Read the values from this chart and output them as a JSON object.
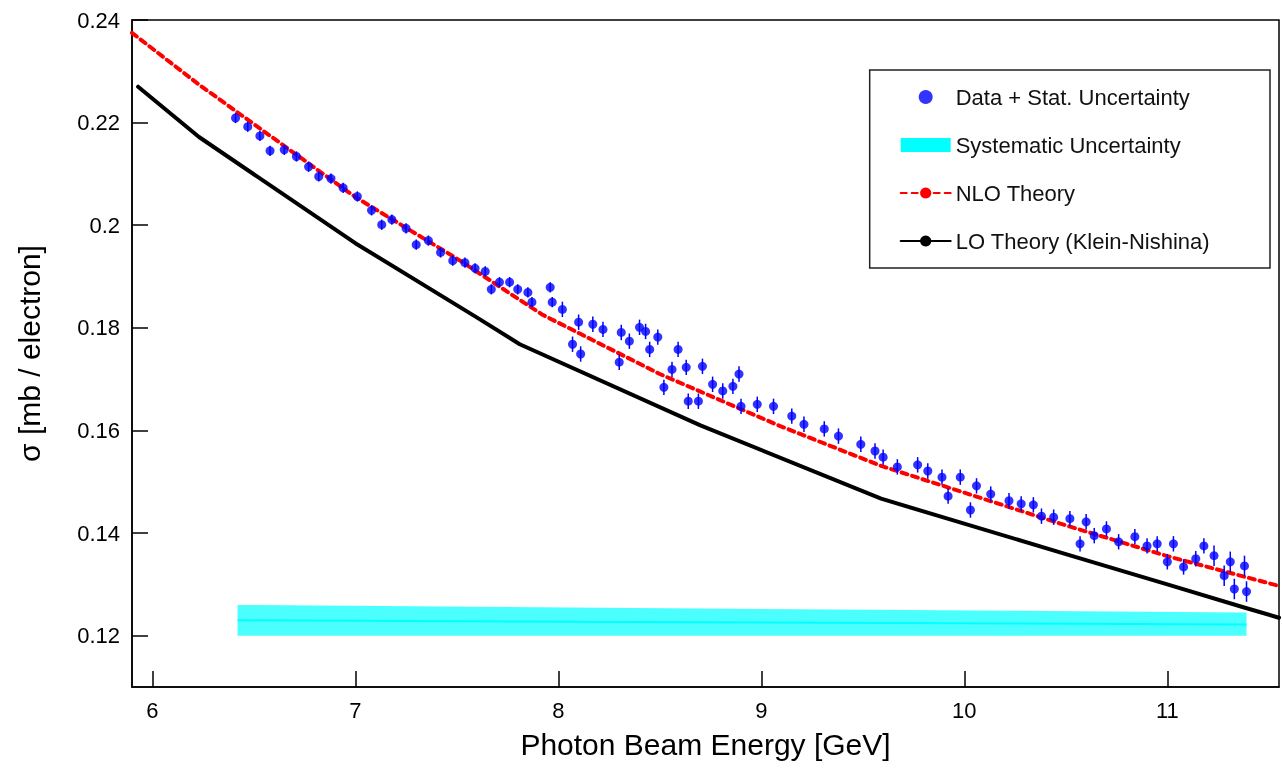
{
  "chart_data": {
    "type": "line",
    "xlabel": "Photon Beam Energy [GeV]",
    "ylabel": "σ [mb / electron]",
    "xlim": [
      5.9,
      11.55
    ],
    "xticks": [
      6,
      7,
      8,
      9,
      10,
      11
    ],
    "ylim": [
      0.11,
      0.24
    ],
    "yticks": [
      0.12,
      0.14,
      0.16,
      0.18,
      0.2,
      0.22,
      0.24
    ],
    "legend": "top right",
    "series": [
      {
        "name": "Data + Stat. Uncertainty",
        "type": "scatter",
        "marker": "circle",
        "color": "#0000ff",
        "x": [
          6.41,
          6.47,
          6.53,
          6.58,
          6.65,
          6.71,
          6.77,
          6.82,
          6.88,
          6.94,
          7.01,
          7.08,
          7.13,
          7.18,
          7.25,
          7.3,
          7.36,
          7.42,
          7.48,
          7.54,
          7.59,
          7.64,
          7.67,
          7.71,
          7.76,
          7.8,
          7.85,
          7.87,
          7.96,
          7.97,
          8.02,
          8.07,
          8.1,
          8.11,
          8.17,
          8.22,
          8.3,
          8.31,
          8.35,
          8.4,
          8.43,
          8.45,
          8.49,
          8.52,
          8.56,
          8.59,
          8.63,
          8.64,
          8.69,
          8.71,
          8.76,
          8.81,
          8.86,
          8.89,
          8.9,
          8.98,
          9.06,
          9.15,
          9.21,
          9.31,
          9.38,
          9.49,
          9.56,
          9.6,
          9.67,
          9.77,
          9.82,
          9.89,
          9.92,
          9.98,
          10.03,
          10.06,
          10.13,
          10.22,
          10.28,
          10.34,
          10.38,
          10.44,
          10.52,
          10.57,
          10.6,
          10.64,
          10.7,
          10.76,
          10.84,
          10.9,
          10.95,
          11.0,
          11.03,
          11.08,
          11.14,
          11.18,
          11.23,
          11.28,
          11.31,
          11.33,
          11.38,
          11.39
        ],
        "values": [
          0.2209,
          0.2192,
          0.2174,
          0.2145,
          0.2147,
          0.2134,
          0.2114,
          0.2095,
          0.2091,
          0.2073,
          0.2056,
          0.2029,
          0.2001,
          0.2011,
          0.1994,
          0.1962,
          0.197,
          0.1947,
          0.1931,
          0.1927,
          0.1916,
          0.191,
          0.1875,
          0.1889,
          0.1889,
          0.1875,
          0.1869,
          0.185,
          0.1879,
          0.185,
          0.1836,
          0.1768,
          0.1811,
          0.1749,
          0.1807,
          0.1797,
          0.1733,
          0.1791,
          0.1774,
          0.1801,
          0.1793,
          0.1758,
          0.1782,
          0.1684,
          0.1719,
          0.1758,
          0.1723,
          0.1657,
          0.1657,
          0.1725,
          0.169,
          0.1677,
          0.1686,
          0.171,
          0.1647,
          0.1651,
          0.1647,
          0.1628,
          0.1612,
          0.1603,
          0.1589,
          0.1573,
          0.156,
          0.1548,
          0.1529,
          0.1533,
          0.1521,
          0.1509,
          0.1472,
          0.1509,
          0.1445,
          0.1492,
          0.1476,
          0.1463,
          0.1457,
          0.1455,
          0.1433,
          0.1431,
          0.1428,
          0.1379,
          0.1422,
          0.1395,
          0.1408,
          0.1383,
          0.1393,
          0.1375,
          0.1379,
          0.1344,
          0.1379,
          0.1334,
          0.135,
          0.1375,
          0.1356,
          0.1317,
          0.1344,
          0.1291,
          0.1336,
          0.1286
        ],
        "errors": [
          0.001,
          0.001,
          0.001,
          0.001,
          0.001,
          0.001,
          0.001,
          0.001,
          0.001,
          0.001,
          0.001,
          0.001,
          0.001,
          0.001,
          0.001,
          0.001,
          0.001,
          0.001,
          0.001,
          0.001,
          0.001,
          0.001,
          0.001,
          0.001,
          0.001,
          0.001,
          0.001,
          0.001,
          0.001,
          0.001,
          0.0015,
          0.0015,
          0.0015,
          0.0015,
          0.0015,
          0.0015,
          0.0015,
          0.0015,
          0.0015,
          0.0015,
          0.0015,
          0.0015,
          0.0015,
          0.0015,
          0.0015,
          0.0015,
          0.0015,
          0.0015,
          0.0015,
          0.0015,
          0.0015,
          0.0015,
          0.0015,
          0.0015,
          0.0015,
          0.0015,
          0.0015,
          0.0015,
          0.0015,
          0.0015,
          0.0015,
          0.0015,
          0.0015,
          0.0015,
          0.0015,
          0.0015,
          0.0015,
          0.0015,
          0.0015,
          0.0015,
          0.0015,
          0.0015,
          0.0015,
          0.0015,
          0.0015,
          0.0015,
          0.0015,
          0.0015,
          0.0015,
          0.0015,
          0.0015,
          0.0015,
          0.0015,
          0.0015,
          0.0015,
          0.0015,
          0.0015,
          0.0015,
          0.0015,
          0.0015,
          0.0015,
          0.0015,
          0.002,
          0.002,
          0.002,
          0.002,
          0.002,
          0.002
        ]
      },
      {
        "name": "Systematic Uncertainty",
        "color": "#00ffff",
        "x": [
          6.42,
          11.39
        ],
        "values": [
          0.123,
          0.1222
        ],
        "lower": [
          0.12,
          0.12
        ],
        "upper": [
          0.126,
          0.1245
        ]
      },
      {
        "name": "NLO Theory",
        "line_style": "dashed",
        "color": "#ff0000",
        "x": [
          5.9,
          6.23,
          7.0,
          7.5,
          7.92,
          8.5,
          9.09,
          9.59,
          10.5,
          11.0,
          11.55
        ],
        "values": [
          0.2375,
          0.2274,
          0.2055,
          0.1935,
          0.1826,
          0.171,
          0.1609,
          0.1531,
          0.1415,
          0.1355,
          0.1297
        ]
      },
      {
        "name": "LO Theory (Klein-Nishina)",
        "line_style": "solid",
        "color": "#000000",
        "x": [
          5.93,
          6.23,
          7.0,
          7.6,
          7.81,
          8.7,
          9.59,
          10.5,
          11.0,
          11.37,
          11.55
        ],
        "values": [
          0.227,
          0.2172,
          0.1965,
          0.182,
          0.1768,
          0.161,
          0.1467,
          0.1359,
          0.13,
          0.1256,
          0.1235
        ]
      }
    ]
  }
}
